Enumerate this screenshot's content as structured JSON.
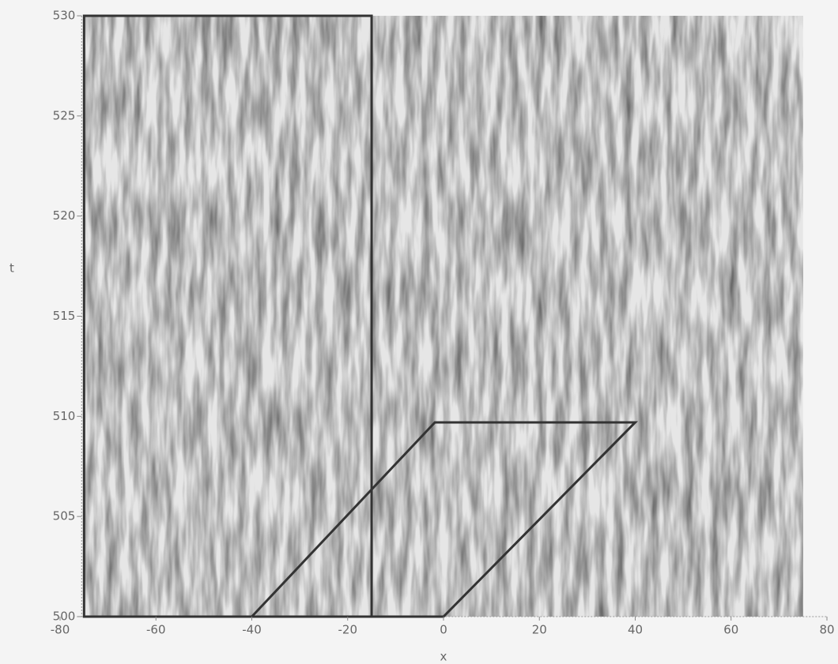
{
  "chart_data": {
    "type": "spacetime",
    "xlabel": "x",
    "ylabel": "t",
    "xlim": [
      -80,
      80
    ],
    "ylim": [
      500,
      530
    ],
    "xticks": [
      -80,
      -60,
      -40,
      -20,
      0,
      20,
      40,
      60,
      80
    ],
    "yticks": [
      500,
      505,
      510,
      515,
      520,
      525,
      530
    ],
    "field_xlim": [
      -75,
      75
    ],
    "shapes": [
      {
        "x": [
          -75,
          -75,
          -15,
          -15
        ],
        "y": [
          500,
          530,
          530,
          500
        ],
        "color": "#333333"
      },
      {
        "x": [
          -40,
          -1.8,
          40,
          0
        ],
        "y": [
          500,
          509.7,
          509.7,
          500
        ],
        "color": "#333333"
      }
    ]
  }
}
